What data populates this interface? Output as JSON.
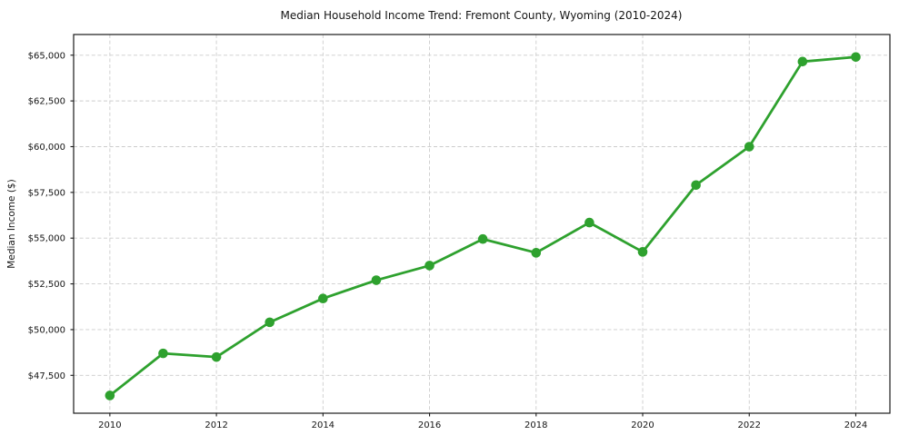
{
  "chart_data": {
    "type": "line",
    "title": "Median Household Income Trend: Fremont County, Wyoming (2010-2024)",
    "xlabel": "",
    "ylabel": "Median Income ($)",
    "x": [
      2010,
      2011,
      2012,
      2013,
      2014,
      2015,
      2016,
      2017,
      2018,
      2019,
      2020,
      2021,
      2022,
      2023,
      2024
    ],
    "series": [
      {
        "name": "Median Household Income",
        "values": [
          46400,
          48700,
          48500,
          50400,
          51700,
          52700,
          53500,
          54950,
          54200,
          55850,
          54250,
          57900,
          60000,
          64650,
          64900
        ]
      }
    ],
    "x_ticks": [
      2010,
      2012,
      2014,
      2016,
      2018,
      2020,
      2022,
      2024
    ],
    "x_tick_labels": [
      "2010",
      "2012",
      "2014",
      "2016",
      "2018",
      "2020",
      "2022",
      "2024"
    ],
    "y_ticks": [
      47500,
      50000,
      52500,
      55000,
      57500,
      60000,
      62500,
      65000
    ],
    "y_tick_labels": [
      "$47,500",
      "$50,000",
      "$52,500",
      "$55,000",
      "$57,500",
      "$60,000",
      "$62,500",
      "$65,000"
    ],
    "xlim": [
      2009.32,
      2024.64
    ],
    "ylim": [
      45430,
      66130
    ],
    "grid": true,
    "legend": "none",
    "line_color": "#2ea12e",
    "marker": "circle",
    "background": "#ffffff",
    "text_color": "#151515"
  }
}
